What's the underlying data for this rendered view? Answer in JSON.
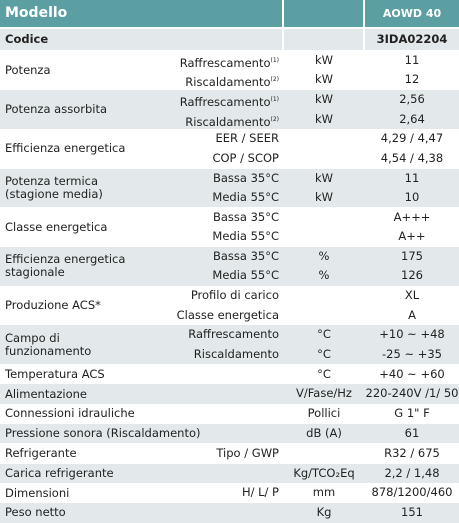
{
  "header": {
    "title": "Modello",
    "model": "AOWD 40"
  },
  "codice": {
    "label": "Codice",
    "value": "3IDA02204"
  },
  "rows": [
    {
      "label": [
        "Potenza"
      ],
      "subs": [
        {
          "sub": "Raffrescamento",
          "note": "(1)",
          "unit": "kW",
          "value": "11"
        },
        {
          "sub": "Riscaldamento",
          "note": "(2)",
          "unit": "kW",
          "value": "12"
        }
      ]
    },
    {
      "label": [
        "Potenza assorbita"
      ],
      "subs": [
        {
          "sub": "Raffrescamento",
          "note": "(1)",
          "unit": "kW",
          "value": "2,56"
        },
        {
          "sub": "Riscaldamento",
          "note": "(2)",
          "unit": "kW",
          "value": "2,64"
        }
      ]
    },
    {
      "label": [
        "Efficienza energetica"
      ],
      "subs": [
        {
          "sub": "EER / SEER",
          "value": "4,29 / 4,47"
        },
        {
          "sub": "COP / SCOP",
          "value": "4,54 / 4,38"
        }
      ]
    },
    {
      "label": [
        "Potenza termica",
        "(stagione media)"
      ],
      "subs": [
        {
          "sub": "Bassa 35°C",
          "unit": "kW",
          "value": "11"
        },
        {
          "sub": "Media 55°C",
          "unit": "kW",
          "value": "10"
        }
      ]
    },
    {
      "label": [
        "Classe energetica"
      ],
      "subs": [
        {
          "sub": "Bassa 35°C",
          "value": "A+++"
        },
        {
          "sub": "Media 55°C",
          "value": "A++"
        }
      ]
    },
    {
      "label": [
        "Efficienza energetica",
        "stagionale"
      ],
      "subs": [
        {
          "sub": "Bassa 35°C",
          "unit": "%",
          "value": "175"
        },
        {
          "sub": "Media 55°C",
          "unit": "%",
          "value": "126"
        }
      ]
    },
    {
      "label": [
        "Produzione ACS*"
      ],
      "subs": [
        {
          "sub": "Profilo di carico",
          "value": "XL"
        },
        {
          "sub": "Classe energetica",
          "value": "A"
        }
      ]
    },
    {
      "label": [
        "Campo di",
        "funzionamento"
      ],
      "subs": [
        {
          "sub": "Raffrescamento",
          "unit": "°C",
          "value": "+10 ~ +48"
        },
        {
          "sub": "Riscaldamento",
          "unit": "°C",
          "value": "-25 ~ +35"
        }
      ]
    },
    {
      "label": [
        "Temperatura ACS"
      ],
      "subs": [
        {
          "unit": "°C",
          "value": "+40 ~ +60"
        }
      ]
    },
    {
      "label": [
        "Alimentazione"
      ],
      "subs": [
        {
          "unit": "V/Fase/Hz",
          "value": "220-240V /1/ 50"
        }
      ]
    },
    {
      "label": [
        "Connessioni idrauliche"
      ],
      "subs": [
        {
          "unit": "Pollici",
          "value": "G 1\" F"
        }
      ]
    },
    {
      "label": [
        "Pressione sonora (Riscaldamento)"
      ],
      "subs": [
        {
          "unit": "dB (A)",
          "value": "61"
        }
      ]
    },
    {
      "label": [
        "Refrigerante"
      ],
      "subs": [
        {
          "sub": "Tipo / GWP",
          "value": "R32 / 675"
        }
      ]
    },
    {
      "label": [
        "Carica refrigerante"
      ],
      "subs": [
        {
          "unit": "Kg/TCO₂Eq",
          "value": "2,2 / 1,48"
        }
      ]
    },
    {
      "label": [
        "Dimensioni"
      ],
      "subs": [
        {
          "sub": "H/ L/ P",
          "unit": "mm",
          "value": "878/1200/460"
        }
      ]
    },
    {
      "label": [
        "Peso netto"
      ],
      "subs": [
        {
          "unit": "Kg",
          "value": "151"
        }
      ]
    }
  ]
}
